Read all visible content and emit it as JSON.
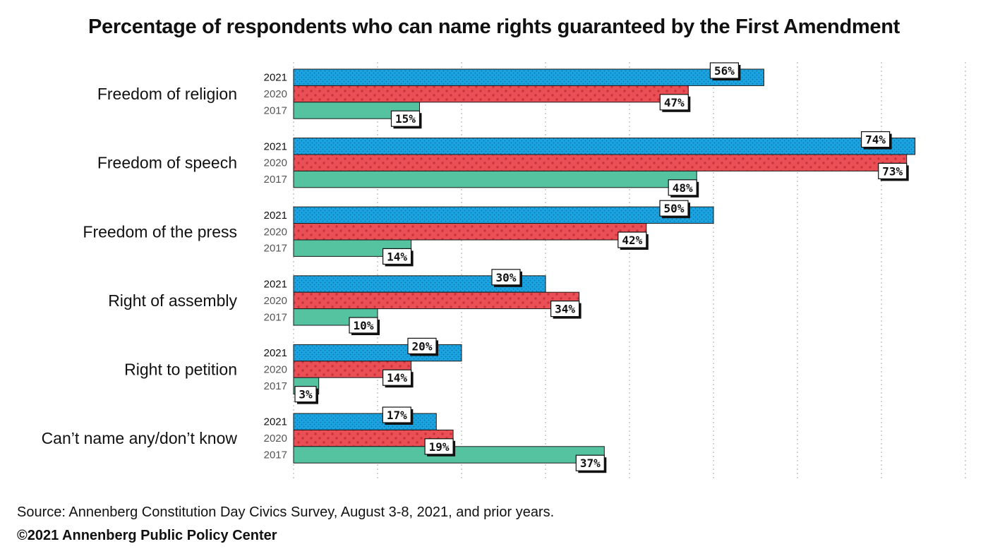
{
  "title": "Percentage of respondents who can name rights guaranteed by the First Amendment",
  "source": "Source: Annenberg Constitution Day Civics Survey, August 3-8, 2021, and prior years.",
  "copyright": "©2021 Annenberg Public Policy Center",
  "colors": {
    "2021": "#1aa3e0",
    "2020": "#ea4f55",
    "2017": "#55c3a0",
    "year_2021_text": "#111111",
    "year_other_text": "#555555"
  },
  "chart_data": {
    "type": "bar",
    "orientation": "horizontal",
    "categories": [
      "Freedom of religion",
      "Freedom of speech",
      "Freedom of the press",
      "Right of assembly",
      "Right to petition",
      "Can’t name any/don’t know"
    ],
    "series": [
      {
        "name": "2021",
        "values": [
          56,
          74,
          50,
          30,
          20,
          17
        ],
        "labels": [
          "56%",
          "74%",
          "50%",
          "30%",
          "20%",
          "17%"
        ]
      },
      {
        "name": "2020",
        "values": [
          47,
          73,
          42,
          34,
          14,
          19
        ],
        "labels": [
          "47%",
          "73%",
          "42%",
          "34%",
          "14%",
          "19%"
        ]
      },
      {
        "name": "2017",
        "values": [
          15,
          48,
          14,
          10,
          3,
          37
        ],
        "labels": [
          "15%",
          "48%",
          "14%",
          "10%",
          "3%",
          "37%"
        ]
      }
    ],
    "xlim": [
      0,
      80
    ],
    "grid": true,
    "legend": "none"
  }
}
